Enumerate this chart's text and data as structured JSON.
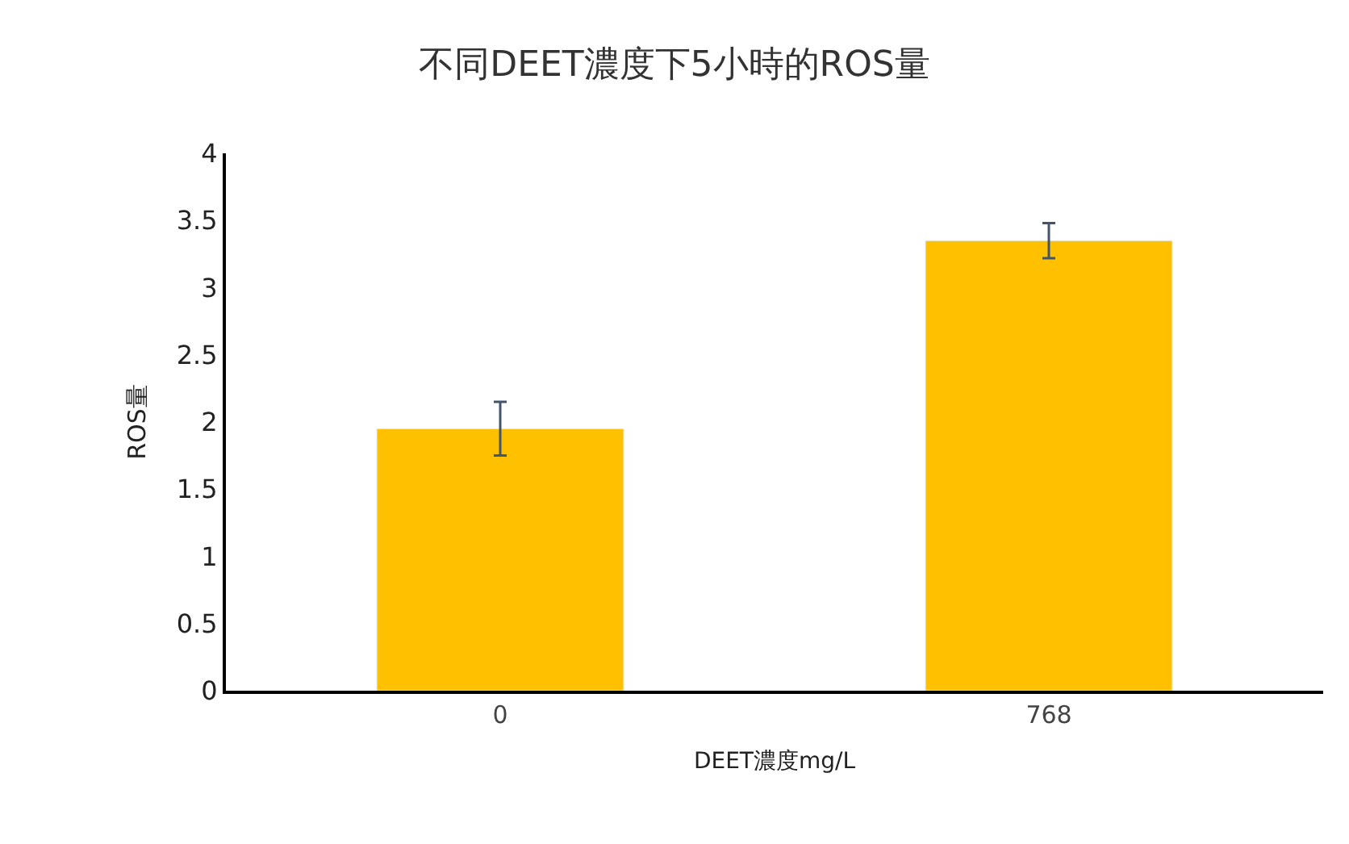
{
  "chart_data": {
    "type": "bar",
    "title": "不同DEET濃度下5小時的ROS量",
    "xlabel": "DEET濃度mg/L",
    "ylabel": "ROS量",
    "categories": [
      "0",
      "768"
    ],
    "values": [
      1.95,
      3.35
    ],
    "errors": [
      0.2,
      0.13
    ],
    "color": "#ffc000",
    "ylim": [
      0,
      4
    ],
    "yticks": [
      0,
      0.5,
      1,
      1.5,
      2,
      2.5,
      3,
      3.5,
      4
    ]
  }
}
